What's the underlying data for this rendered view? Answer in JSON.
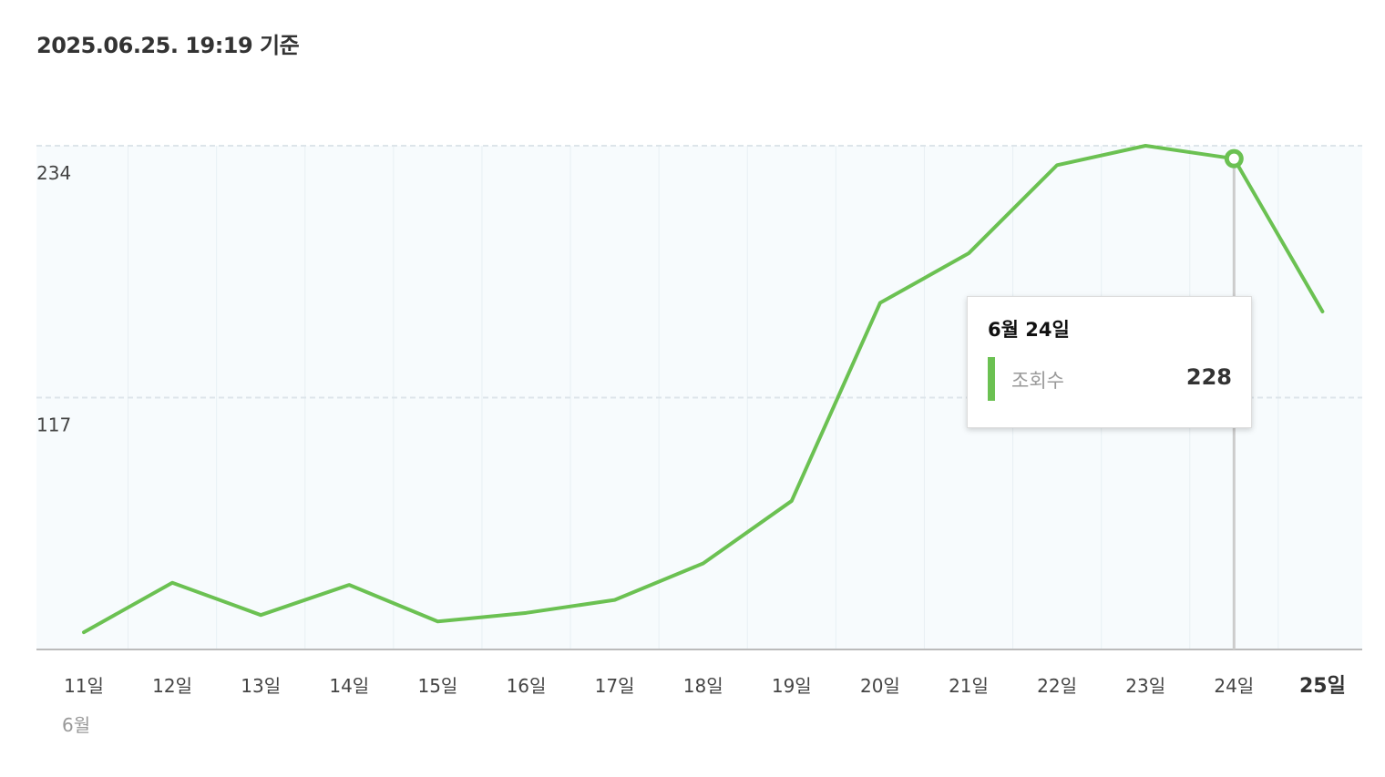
{
  "header": {
    "timestamp": "2025.06.25. 19:19 기준"
  },
  "chart_data": {
    "type": "line",
    "categories": [
      "11일",
      "12일",
      "13일",
      "14일",
      "15일",
      "16일",
      "17일",
      "18일",
      "19일",
      "20일",
      "21일",
      "22일",
      "23일",
      "24일",
      "25일"
    ],
    "month_label": "6월",
    "series": [
      {
        "name": "조회수",
        "color": "#6bc152",
        "values": [
          8,
          31,
          16,
          30,
          13,
          17,
          23,
          40,
          69,
          161,
          184,
          225,
          234,
          228,
          157
        ]
      }
    ],
    "y_ticks": [
      117,
      234
    ],
    "ylim": [
      0,
      234
    ],
    "highlight_category": "25일",
    "grid": true,
    "tooltip": {
      "title": "6월 24일",
      "label": "조회수",
      "value": "228",
      "index": 13
    }
  }
}
